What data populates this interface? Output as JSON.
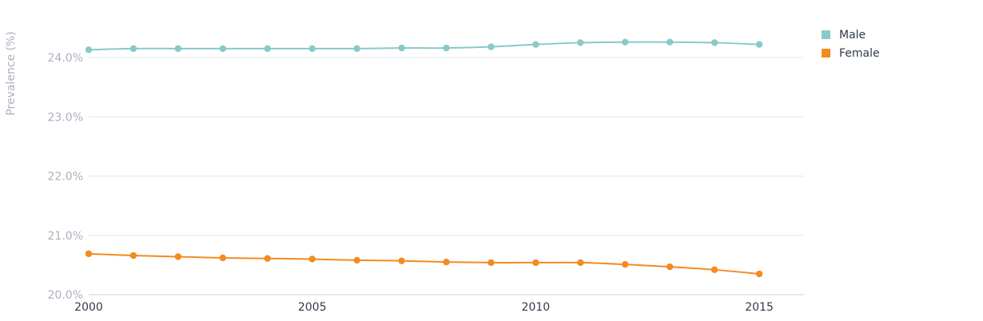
{
  "chart_data": {
    "type": "line",
    "ylabel": "Prevalence (%)",
    "ylim": [
      20,
      24.2
    ],
    "y_ticks": [
      "20.0%",
      "21.0%",
      "22.0%",
      "23.0%",
      "24.0%"
    ],
    "xlim": [
      2000,
      2016
    ],
    "x_ticks": [
      "2000",
      "2005",
      "2010",
      "2015"
    ],
    "x": [
      2000,
      2001,
      2002,
      2003,
      2004,
      2005,
      2006,
      2007,
      2008,
      2009,
      2010,
      2011,
      2012,
      2013,
      2014,
      2015
    ],
    "series": [
      {
        "name": "Male",
        "color": "#88c9c9",
        "values": [
          24.13,
          24.15,
          24.15,
          24.15,
          24.15,
          24.15,
          24.15,
          24.16,
          24.16,
          24.18,
          24.22,
          24.25,
          24.26,
          24.26,
          24.25,
          24.22
        ]
      },
      {
        "name": "Female",
        "color": "#f38b20",
        "values": [
          20.69,
          20.66,
          20.64,
          20.62,
          20.61,
          20.6,
          20.58,
          20.57,
          20.55,
          20.54,
          20.54,
          20.54,
          20.51,
          20.47,
          20.42,
          20.35
        ]
      }
    ],
    "grid": true,
    "legend_position": "top-right"
  }
}
